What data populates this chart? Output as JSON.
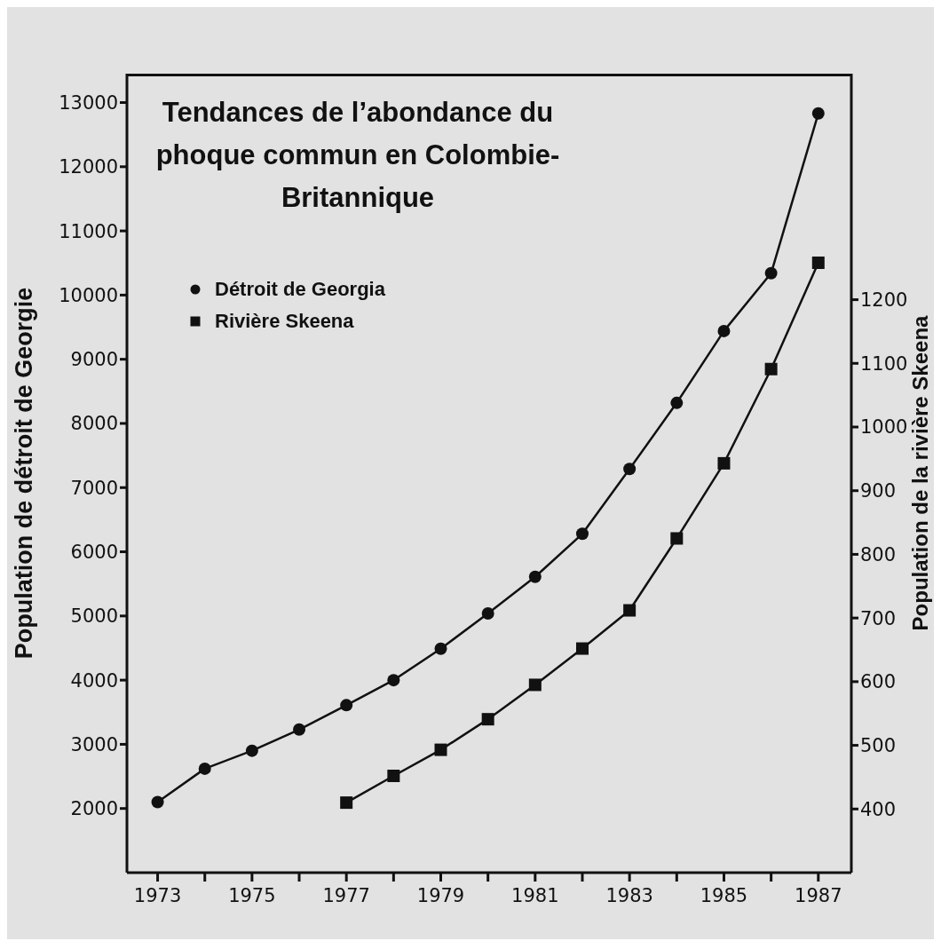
{
  "chart_data": {
    "type": "line",
    "title": "Tendances de l’abondance du phoque commun en Colombie-Britannique",
    "ylabel": "Population de détroit de Georgie",
    "y2label": "Population de la rivière Skeena",
    "series": [
      {
        "name": "Détroit de Georgia",
        "color": "#111111",
        "marker": "circle",
        "x": [
          1973,
          1974,
          1975,
          1976,
          1977,
          1978,
          1979,
          1980,
          1981,
          1982,
          1983,
          1984,
          1985,
          1986,
          1987
        ],
        "values": [
          2100,
          2620,
          2900,
          3230,
          3610,
          4000,
          4490,
          5040,
          5610,
          6280,
          7290,
          8320,
          9440,
          10340,
          12830
        ]
      },
      {
        "name": "Rivière Skeena",
        "color": "#111111",
        "marker": "square",
        "axis": "y2",
        "x": [
          1977,
          1978,
          1979,
          1980,
          1981,
          1982,
          1983,
          1984,
          1985,
          1986,
          1987
        ],
        "values": [
          410,
          452,
          493,
          541,
          595,
          652,
          712,
          825,
          943,
          1091,
          1258
        ]
      }
    ],
    "xlim": [
      1972.35,
      1987.7
    ],
    "xticks": [
      1973,
      {
        "value": 1974,
        "label": null
      },
      1975,
      {
        "value": 1976,
        "label": null
      },
      1977,
      {
        "value": 1978,
        "label": null
      },
      1979,
      {
        "value": 1980,
        "label": null
      },
      1981,
      {
        "value": 1982,
        "label": null
      },
      1983,
      {
        "value": 1984,
        "label": null
      },
      1985,
      {
        "value": 1986,
        "label": null
      },
      1987
    ],
    "ylim": [
      1000,
      13450
    ],
    "yticks": [
      2000,
      3000,
      4000,
      5000,
      6000,
      7000,
      8000,
      9000,
      10000,
      11000,
      12000,
      13000
    ],
    "y2lim": [
      300,
      1555
    ],
    "y2ticks": [
      400,
      500,
      600,
      700,
      800,
      900,
      1000,
      1100,
      1200
    ],
    "legend": "top left",
    "grid": false,
    "line_style": "solid"
  }
}
